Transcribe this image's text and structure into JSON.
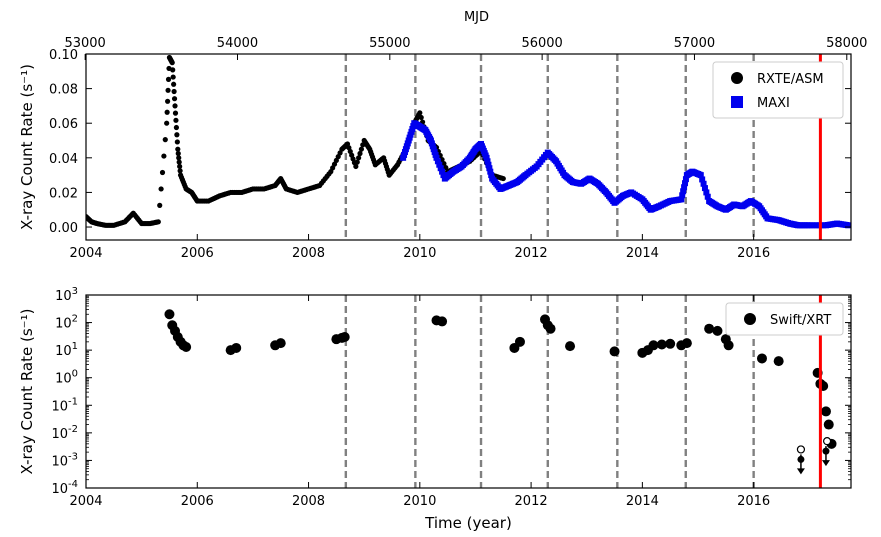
{
  "chart_data": [
    {
      "type": "scatter",
      "panel": "top",
      "xlabel": "",
      "ylabel": "X-ray Count Rate (s⁻¹)",
      "top_axis_label": "MJD",
      "xlim": [
        2004.0,
        2017.75
      ],
      "ylim": [
        -0.0075,
        0.1
      ],
      "x_ticks": [
        2004,
        2006,
        2008,
        2010,
        2012,
        2014,
        2016
      ],
      "x_tick_labels": [
        "2004",
        "2006",
        "2008",
        "2010",
        "2012",
        "2014",
        "2016"
      ],
      "y_ticks": [
        0.0,
        0.02,
        0.04,
        0.06,
        0.08,
        0.1
      ],
      "y_tick_labels": [
        "0.00",
        "0.02",
        "0.04",
        "0.06",
        "0.08",
        "0.10"
      ],
      "top_ticks_mjd": [
        53000,
        54000,
        55000,
        56000,
        57000,
        58000
      ],
      "top_tick_labels": [
        "53000",
        "54000",
        "55000",
        "56000",
        "57000",
        "58000"
      ],
      "legend": {
        "position": "top-right",
        "entries": [
          "RXTE/ASM",
          "MAXI"
        ]
      },
      "grid": false,
      "vlines_dashed": [
        2008.67,
        2009.92,
        2011.1,
        2012.3,
        2013.55,
        2014.78,
        2016.0
      ],
      "vline_red": 2017.2,
      "series": [
        {
          "name": "RXTE/ASM",
          "marker": "circle",
          "color": "#000000",
          "x": [
            2004.0,
            2004.1,
            2004.2,
            2004.35,
            2004.5,
            2004.7,
            2004.85,
            2005.0,
            2005.15,
            2005.3,
            2005.45,
            2005.5,
            2005.55,
            2005.6,
            2005.65,
            2005.7,
            2005.8,
            2005.9,
            2006.0,
            2006.2,
            2006.4,
            2006.6,
            2006.8,
            2007.0,
            2007.2,
            2007.4,
            2007.5,
            2007.6,
            2007.8,
            2008.0,
            2008.2,
            2008.4,
            2008.6,
            2008.7,
            2008.85,
            2009.0,
            2009.1,
            2009.2,
            2009.35,
            2009.45,
            2009.6,
            2009.75,
            2009.9,
            2010.0,
            2010.15,
            2010.3,
            2010.5,
            2010.7,
            2010.9,
            2011.1,
            2011.3,
            2011.5
          ],
          "y": [
            0.006,
            0.003,
            0.002,
            0.001,
            0.001,
            0.003,
            0.008,
            0.002,
            0.002,
            0.003,
            0.06,
            0.098,
            0.095,
            0.07,
            0.045,
            0.03,
            0.022,
            0.02,
            0.015,
            0.015,
            0.018,
            0.02,
            0.02,
            0.022,
            0.022,
            0.024,
            0.028,
            0.022,
            0.02,
            0.022,
            0.024,
            0.032,
            0.045,
            0.048,
            0.035,
            0.05,
            0.045,
            0.036,
            0.04,
            0.03,
            0.036,
            0.045,
            0.06,
            0.066,
            0.05,
            0.046,
            0.032,
            0.035,
            0.038,
            0.044,
            0.03,
            0.028
          ]
        },
        {
          "name": "MAXI",
          "marker": "square",
          "color": "#0000ee",
          "x": [
            2009.7,
            2009.8,
            2009.9,
            2010.0,
            2010.1,
            2010.2,
            2010.3,
            2010.45,
            2010.6,
            2010.75,
            2010.9,
            2011.0,
            2011.1,
            2011.2,
            2011.3,
            2011.45,
            2011.6,
            2011.75,
            2011.9,
            2012.1,
            2012.3,
            2012.45,
            2012.6,
            2012.75,
            2012.9,
            2013.05,
            2013.2,
            2013.35,
            2013.5,
            2013.65,
            2013.8,
            2014.0,
            2014.15,
            2014.3,
            2014.5,
            2014.7,
            2014.8,
            2014.9,
            2015.05,
            2015.2,
            2015.35,
            2015.5,
            2015.65,
            2015.8,
            2015.95,
            2016.1,
            2016.25,
            2016.45,
            2016.65,
            2016.8,
            2017.0,
            2017.3,
            2017.5,
            2017.7
          ],
          "y": [
            0.04,
            0.05,
            0.06,
            0.058,
            0.056,
            0.05,
            0.04,
            0.028,
            0.032,
            0.035,
            0.04,
            0.045,
            0.048,
            0.04,
            0.028,
            0.022,
            0.024,
            0.026,
            0.03,
            0.035,
            0.043,
            0.038,
            0.03,
            0.026,
            0.025,
            0.028,
            0.025,
            0.02,
            0.014,
            0.018,
            0.02,
            0.016,
            0.01,
            0.012,
            0.015,
            0.016,
            0.03,
            0.032,
            0.03,
            0.015,
            0.012,
            0.01,
            0.013,
            0.012,
            0.015,
            0.012,
            0.005,
            0.004,
            0.002,
            0.001,
            0.001,
            0.001,
            0.002,
            0.001
          ]
        }
      ]
    },
    {
      "type": "scatter",
      "panel": "bottom",
      "xlabel": "Time (year)",
      "ylabel": "X-ray Count Rate (s⁻¹)",
      "xlim": [
        2004.0,
        2017.75
      ],
      "ylim": [
        0.0001,
        1000
      ],
      "y_scale": "log",
      "x_ticks": [
        2004,
        2006,
        2008,
        2010,
        2012,
        2014,
        2016
      ],
      "x_tick_labels": [
        "2004",
        "2006",
        "2008",
        "2010",
        "2012",
        "2014",
        "2016"
      ],
      "y_ticks": [
        0.0001,
        0.001,
        0.01,
        0.1,
        1,
        10,
        100,
        1000
      ],
      "y_tick_exponents": [
        "-4",
        "-3",
        "-2",
        "-1",
        "0",
        "1",
        "2",
        "3"
      ],
      "y_tick_base": "10",
      "legend": {
        "position": "top-right",
        "entries": [
          "Swift/XRT"
        ]
      },
      "grid": false,
      "vlines_dashed": [
        2008.67,
        2009.92,
        2011.1,
        2012.3,
        2013.55,
        2014.78,
        2016.0
      ],
      "vline_red": 2017.2,
      "upper_limits_x": [
        2016.85,
        2017.3
      ],
      "upper_limits_y": [
        0.001,
        0.002
      ],
      "upper_limit_markers": [
        {
          "x": 2016.85,
          "y": 0.0025,
          "style": "open-circle"
        },
        {
          "x": 2017.32,
          "y": 0.005,
          "style": "open-circle"
        }
      ],
      "series": [
        {
          "name": "Swift/XRT",
          "marker": "circle",
          "color": "#000000",
          "x": [
            2005.5,
            2005.55,
            2005.6,
            2005.65,
            2005.7,
            2005.75,
            2005.8,
            2006.6,
            2006.7,
            2007.4,
            2007.5,
            2008.5,
            2008.6,
            2008.65,
            2010.3,
            2010.4,
            2011.7,
            2011.8,
            2012.25,
            2012.3,
            2012.35,
            2012.7,
            2013.5,
            2014.0,
            2014.1,
            2014.2,
            2014.35,
            2014.5,
            2014.7,
            2014.8,
            2015.2,
            2015.35,
            2015.5,
            2015.55,
            2016.15,
            2016.45,
            2017.15,
            2017.2,
            2017.25,
            2017.3,
            2017.35,
            2017.4
          ],
          "y": [
            200,
            80,
            50,
            30,
            20,
            15,
            13,
            10,
            12,
            15,
            18,
            25,
            28,
            30,
            120,
            110,
            12,
            20,
            130,
            80,
            60,
            14,
            9,
            8,
            10,
            15,
            16,
            17,
            15,
            18,
            60,
            50,
            25,
            15,
            5,
            4,
            1.5,
            0.6,
            0.5,
            0.06,
            0.02,
            0.004
          ]
        }
      ]
    }
  ]
}
